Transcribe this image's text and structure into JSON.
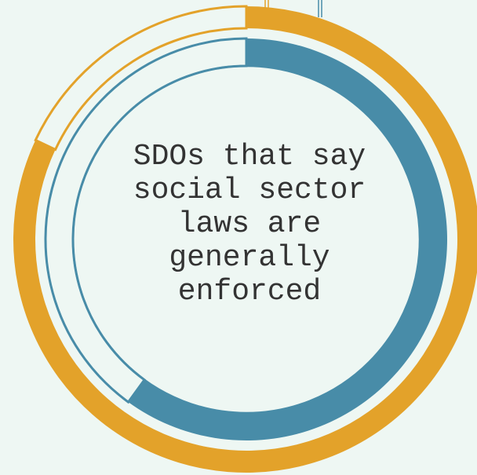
{
  "colors": {
    "background": "#eef7f3",
    "outer_ring": "#e3a22a",
    "inner_ring": "#488ca8",
    "text": "#333333"
  },
  "chart_data": {
    "type": "pie",
    "subtype": "concentric-donut",
    "title": "SDOs that say social sector laws are generally enforced",
    "title_lines": [
      "SDOs that say",
      "social sector",
      "laws are",
      "generally",
      "enforced"
    ],
    "series": [
      {
        "ring": "outer",
        "fraction": 0.82,
        "color": "#e3a22a"
      },
      {
        "ring": "inner",
        "fraction": 0.6,
        "color": "#488ca8"
      }
    ],
    "start_angle_deg": 0,
    "direction": "clockwise"
  }
}
